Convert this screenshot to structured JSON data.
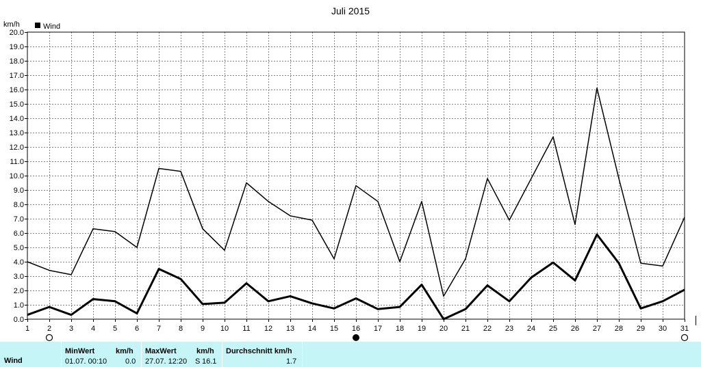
{
  "chart_data": {
    "type": "line",
    "title": "Juli 2015",
    "ylabel": "km/h",
    "ylim": [
      0,
      20
    ],
    "yticks": [
      "0.0",
      "1.0",
      "2.0",
      "3.0",
      "4.0",
      "5.0",
      "6.0",
      "7.0",
      "8.0",
      "9.0",
      "10.0",
      "11.0",
      "12.0",
      "13.0",
      "14.0",
      "15.0",
      "16.0",
      "17.0",
      "18.0",
      "19.0",
      "20.0"
    ],
    "x": [
      1,
      2,
      3,
      4,
      5,
      6,
      7,
      8,
      9,
      10,
      11,
      12,
      13,
      14,
      15,
      16,
      17,
      18,
      19,
      20,
      21,
      22,
      23,
      24,
      25,
      26,
      27,
      28,
      29,
      30,
      31
    ],
    "xlabels": [
      "1",
      "2",
      "3",
      "4",
      "5",
      "6",
      "7",
      "8",
      "9",
      "10",
      "11",
      "12",
      "13",
      "14",
      "15",
      "16",
      "17",
      "18",
      "19",
      "20",
      "21",
      "22",
      "23",
      "24",
      "25",
      "26",
      "27",
      "28",
      "29",
      "30",
      "31"
    ],
    "grid": true,
    "legend": "Wind",
    "series": [
      {
        "values": [
          4.0,
          3.4,
          3.1,
          6.3,
          6.1,
          5.0,
          10.5,
          10.3,
          6.3,
          4.8,
          9.5,
          8.2,
          7.2,
          6.9,
          4.2,
          9.3,
          8.2,
          4.0,
          8.2,
          1.6,
          4.2,
          9.8,
          6.9,
          9.8,
          12.7,
          6.6,
          16.1,
          9.8,
          3.9,
          3.7,
          7.1
        ],
        "width": 1.5
      },
      {
        "values": [
          0.3,
          0.85,
          0.3,
          1.4,
          1.25,
          0.4,
          3.5,
          2.8,
          1.05,
          1.15,
          2.5,
          1.25,
          1.6,
          1.1,
          0.75,
          1.45,
          0.7,
          0.85,
          2.4,
          0.0,
          0.7,
          2.35,
          1.25,
          2.9,
          3.95,
          2.7,
          5.9,
          3.9,
          0.75,
          1.25,
          2.05
        ],
        "width": 3
      }
    ],
    "markers": [
      {
        "x": 2,
        "symbol": "open-circle"
      },
      {
        "x": 16,
        "symbol": "half-circle"
      },
      {
        "x": 31,
        "symbol": "open-circle"
      }
    ],
    "colors": {
      "line": "#000000",
      "grid": "#808080",
      "panel": "#c6f5f8"
    }
  },
  "summary": {
    "row_label": "Wind",
    "min_header": "MinWert",
    "min_unit": "km/h",
    "min_time": "01.07.  00:10",
    "min_value": "0.0",
    "max_header": "MaxWert",
    "max_unit": "km/h",
    "max_time": "27.07.  12:20",
    "max_dir": "S",
    "max_value": "16.1",
    "avg_header": "Durchschnitt km/h",
    "avg_value": "1.7"
  }
}
